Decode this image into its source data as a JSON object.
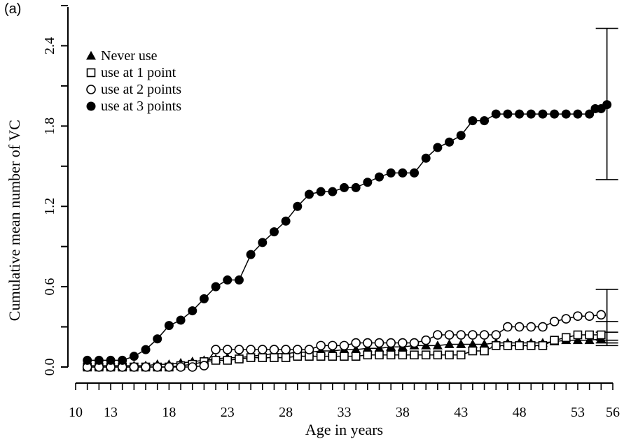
{
  "chart_data": {
    "type": "line",
    "panel_label": "(a)",
    "xlabel": "Age in years",
    "ylabel": "Cumulative mean number of VC",
    "xlim": [
      10,
      56
    ],
    "ylim": [
      0.0,
      2.7
    ],
    "x_ticks": [
      10,
      13,
      18,
      23,
      28,
      33,
      38,
      43,
      48,
      53,
      56
    ],
    "y_ticks": [
      "0.0",
      "0.6",
      "1.2",
      "1.8",
      "2.4"
    ],
    "grid": false,
    "legend_position": "top-left",
    "series": [
      {
        "name": "Never use",
        "marker": "filled-triangle",
        "x": [
          11,
          12,
          13,
          14,
          15,
          16,
          17,
          18,
          19,
          20,
          21,
          22,
          23,
          24,
          25,
          26,
          27,
          28,
          29,
          30,
          31,
          32,
          33,
          34,
          35,
          36,
          37,
          38,
          39,
          40,
          41,
          42,
          43,
          44,
          45,
          46,
          47,
          48,
          49,
          50,
          51,
          52,
          53,
          54,
          55
        ],
        "y": [
          0.01,
          0.01,
          0.01,
          0.01,
          0.01,
          0.01,
          0.02,
          0.02,
          0.03,
          0.04,
          0.05,
          0.06,
          0.07,
          0.07,
          0.08,
          0.09,
          0.1,
          0.1,
          0.11,
          0.11,
          0.12,
          0.12,
          0.13,
          0.13,
          0.14,
          0.14,
          0.15,
          0.15,
          0.16,
          0.16,
          0.16,
          0.17,
          0.17,
          0.17,
          0.17,
          0.18,
          0.18,
          0.18,
          0.18,
          0.18,
          0.19,
          0.2,
          0.2,
          0.2,
          0.21
        ],
        "error_bar": {
          "x": 55.5,
          "y": 0.21,
          "low": 0.16,
          "high": 0.26
        }
      },
      {
        "name": "use at 1 point",
        "marker": "open-square",
        "x": [
          11,
          12,
          13,
          14,
          15,
          16,
          17,
          18,
          19,
          20,
          21,
          22,
          23,
          24,
          25,
          26,
          27,
          28,
          29,
          30,
          31,
          32,
          33,
          34,
          35,
          36,
          37,
          38,
          39,
          40,
          41,
          42,
          43,
          44,
          45,
          46,
          47,
          48,
          49,
          50,
          51,
          52,
          53,
          54,
          55
        ],
        "y": [
          0.0,
          0.0,
          0.0,
          0.0,
          0.0,
          0.0,
          0.0,
          0.0,
          0.01,
          0.02,
          0.04,
          0.05,
          0.05,
          0.06,
          0.07,
          0.07,
          0.07,
          0.07,
          0.08,
          0.08,
          0.08,
          0.08,
          0.08,
          0.08,
          0.09,
          0.09,
          0.09,
          0.09,
          0.09,
          0.09,
          0.09,
          0.09,
          0.09,
          0.12,
          0.12,
          0.16,
          0.16,
          0.16,
          0.16,
          0.16,
          0.2,
          0.22,
          0.24,
          0.24,
          0.24
        ],
        "error_bar": {
          "x": 55.5,
          "y": 0.24,
          "low": 0.18,
          "high": 0.34
        }
      },
      {
        "name": "use at 2 points",
        "marker": "open-circle",
        "x": [
          11,
          12,
          13,
          14,
          15,
          16,
          17,
          18,
          19,
          20,
          21,
          22,
          23,
          24,
          25,
          26,
          27,
          28,
          29,
          30,
          31,
          32,
          33,
          34,
          35,
          36,
          37,
          38,
          39,
          40,
          41,
          42,
          43,
          44,
          45,
          46,
          47,
          48,
          49,
          50,
          51,
          52,
          53,
          54,
          55
        ],
        "y": [
          0.0,
          0.0,
          0.0,
          0.0,
          0.0,
          0.0,
          0.0,
          0.0,
          0.0,
          0.0,
          0.01,
          0.13,
          0.13,
          0.13,
          0.13,
          0.13,
          0.13,
          0.13,
          0.13,
          0.13,
          0.16,
          0.16,
          0.16,
          0.18,
          0.18,
          0.18,
          0.18,
          0.18,
          0.18,
          0.2,
          0.24,
          0.24,
          0.24,
          0.24,
          0.24,
          0.24,
          0.3,
          0.3,
          0.3,
          0.3,
          0.34,
          0.36,
          0.38,
          0.38,
          0.39
        ],
        "error_bar": {
          "x": 55.5,
          "y": 0.39,
          "low": 0.2,
          "high": 0.58
        }
      },
      {
        "name": "use at 3 points",
        "marker": "filled-circle",
        "x": [
          11,
          12,
          13,
          14,
          15,
          16,
          17,
          18,
          19,
          20,
          21,
          22,
          23,
          24,
          25,
          26,
          27,
          28,
          29,
          30,
          31,
          32,
          33,
          34,
          35,
          36,
          37,
          38,
          39,
          40,
          41,
          42,
          43,
          44,
          45,
          46,
          47,
          48,
          49,
          50,
          51,
          52,
          53,
          54,
          55
        ],
        "y": [
          0.05,
          0.05,
          0.05,
          0.05,
          0.08,
          0.13,
          0.21,
          0.31,
          0.35,
          0.42,
          0.51,
          0.6,
          0.65,
          0.65,
          0.84,
          0.93,
          1.01,
          1.09,
          1.2,
          1.29,
          1.31,
          1.31,
          1.34,
          1.34,
          1.38,
          1.42,
          1.45,
          1.45,
          1.45,
          1.56,
          1.64,
          1.68,
          1.73,
          1.84,
          1.84,
          1.89,
          1.89,
          1.89,
          1.89,
          1.89,
          1.89,
          1.89,
          1.89,
          1.89,
          1.93
        ],
        "extra_points": [
          {
            "x": 54.5,
            "y": 1.93
          },
          {
            "x": 55.5,
            "y": 1.96
          }
        ],
        "error_bar": {
          "x": 55.5,
          "y": 1.96,
          "low": 1.4,
          "high": 2.53
        }
      }
    ]
  }
}
